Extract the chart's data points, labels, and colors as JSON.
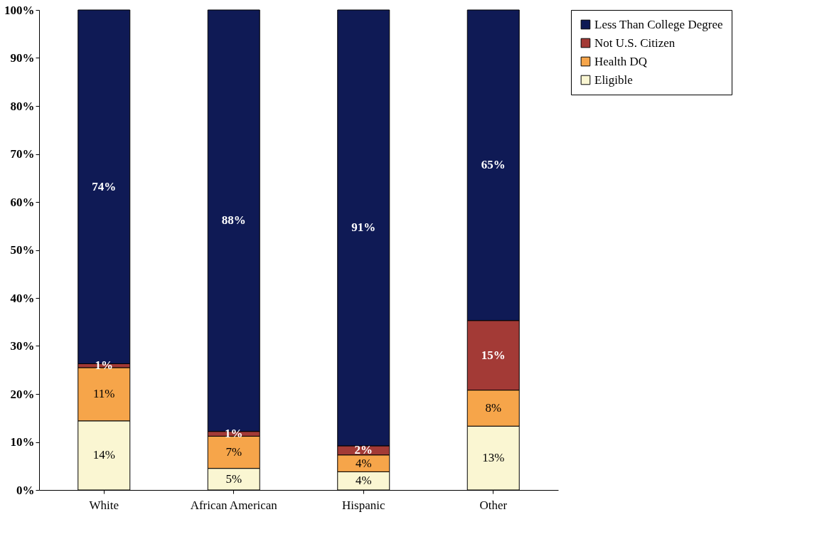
{
  "chart_data": {
    "type": "bar",
    "stacked": true,
    "categories": [
      "White",
      "African American",
      "Hispanic",
      "Other"
    ],
    "series": [
      {
        "name": "Eligible",
        "color": "#faf6d2",
        "values": [
          14.4,
          4.5,
          3.8,
          13.3
        ],
        "value_labels": [
          "14%",
          "5%",
          "4%",
          "13%"
        ]
      },
      {
        "name": "Health DQ",
        "color": "#f6a54a",
        "values": [
          11.1,
          6.7,
          3.5,
          7.5
        ],
        "value_labels": [
          "11%",
          "7%",
          "4%",
          "8%"
        ]
      },
      {
        "name": "Not U.S. Citizen",
        "color": "#a33a36",
        "values": [
          0.8,
          1.0,
          1.9,
          14.5
        ],
        "value_labels": [
          "1%",
          "1%",
          "2%",
          "15%"
        ]
      },
      {
        "name": "Less Than College Degree",
        "color": "#0f1a55",
        "values": [
          73.7,
          87.8,
          90.8,
          64.7
        ],
        "value_labels": [
          "74%",
          "88%",
          "91%",
          "65%"
        ]
      }
    ],
    "ylim": [
      0,
      100
    ],
    "yticks": [
      {
        "value": 0,
        "label": "0%"
      },
      {
        "value": 10,
        "label": "10%"
      },
      {
        "value": 20,
        "label": "20%"
      },
      {
        "value": 30,
        "label": "30%"
      },
      {
        "value": 40,
        "label": "40%"
      },
      {
        "value": 50,
        "label": "50%"
      },
      {
        "value": 60,
        "label": "60%"
      },
      {
        "value": 70,
        "label": "70%"
      },
      {
        "value": 80,
        "label": "80%"
      },
      {
        "value": 90,
        "label": "90%"
      },
      {
        "value": 100,
        "label": "100%"
      }
    ],
    "grid": false,
    "legend": "right"
  }
}
